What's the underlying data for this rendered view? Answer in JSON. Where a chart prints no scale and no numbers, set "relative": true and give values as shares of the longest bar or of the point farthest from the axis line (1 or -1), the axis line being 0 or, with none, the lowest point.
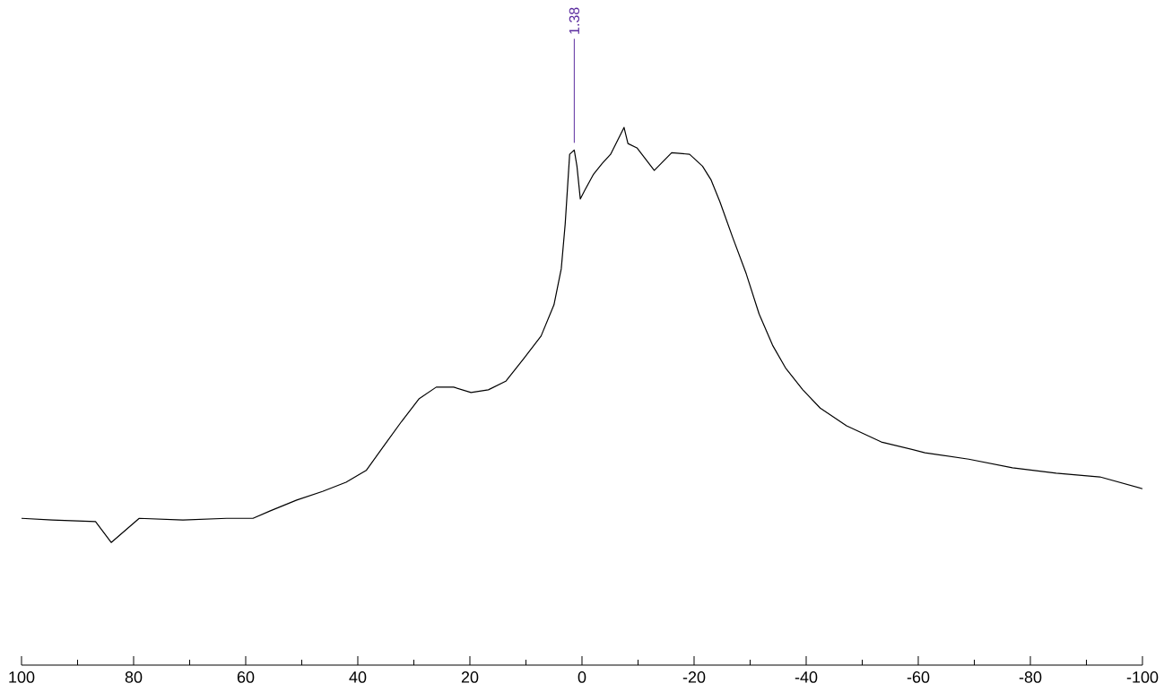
{
  "chart_data": {
    "type": "line",
    "relative": true,
    "xlim": [
      100,
      -100
    ],
    "xticks": [
      100,
      {
        "value": 90,
        "label": null
      },
      80,
      {
        "value": 70,
        "label": null
      },
      60,
      {
        "value": 50,
        "label": null
      },
      40,
      {
        "value": 30,
        "label": null
      },
      20,
      {
        "value": 10,
        "label": null
      },
      0,
      {
        "value": -10,
        "label": null
      },
      -20,
      {
        "value": -30,
        "label": null
      },
      -40,
      {
        "value": -50,
        "label": null
      },
      -60,
      {
        "value": -70,
        "label": null
      },
      -80,
      {
        "value": -90,
        "label": null
      },
      -100
    ],
    "x": [
      100,
      94.5,
      86.8,
      84,
      79,
      71.2,
      63.4,
      58.7,
      55.6,
      50.9,
      46.3,
      42.1,
      38.5,
      35.4,
      32.2,
      29.1,
      26,
      22.9,
      19.8,
      16.7,
      13.6,
      10.4,
      7.3,
      5.0,
      3.7,
      3.0,
      2.2,
      1.38,
      0.9,
      0.3,
      -0.5,
      -2,
      -3.6,
      -5.1,
      -7.5,
      -8.2,
      -9.8,
      -12.9,
      -16,
      -19.2,
      -21.5,
      -23,
      -24.6,
      -26.9,
      -29.3,
      -31.6,
      -34,
      -36.3,
      -39.4,
      -42.5,
      -47.2,
      -53.4,
      -61.2,
      -69,
      -76.8,
      -84.6,
      -92.4,
      -100
    ],
    "series": [
      {
        "color": "#000000",
        "values": [
          0.273,
          0.27,
          0.267,
          0.228,
          0.273,
          0.27,
          0.273,
          0.273,
          0.287,
          0.307,
          0.323,
          0.34,
          0.362,
          0.407,
          0.453,
          0.495,
          0.517,
          0.517,
          0.507,
          0.512,
          0.528,
          0.57,
          0.612,
          0.67,
          0.737,
          0.82,
          0.95,
          0.958,
          0.928,
          0.867,
          0.883,
          0.912,
          0.933,
          0.95,
          1.0,
          0.97,
          0.962,
          0.92,
          0.953,
          0.95,
          0.928,
          0.903,
          0.862,
          0.795,
          0.728,
          0.653,
          0.595,
          0.553,
          0.512,
          0.478,
          0.445,
          0.415,
          0.395,
          0.383,
          0.367,
          0.357,
          0.35,
          0.328
        ]
      }
    ],
    "line_style": "solid",
    "annotations": [
      {
        "text": "1.38",
        "x": 1.38,
        "y": 0.958
      }
    ]
  }
}
